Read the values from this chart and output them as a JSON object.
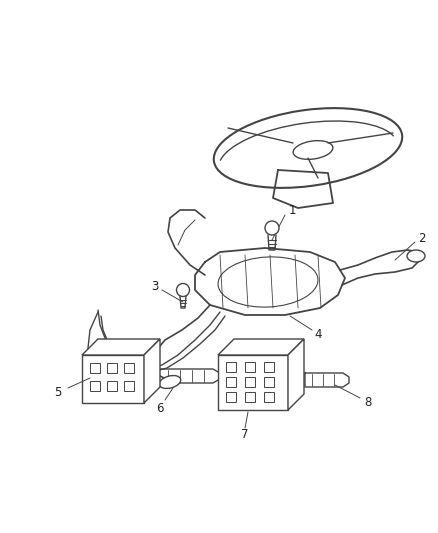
{
  "background_color": "#ffffff",
  "line_color": "#444444",
  "line_width": 1.0,
  "fig_width": 4.38,
  "fig_height": 5.33,
  "dpi": 100,
  "label_fontsize": 8.5
}
